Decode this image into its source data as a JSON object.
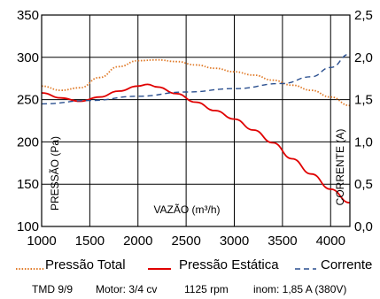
{
  "chart_data": {
    "type": "line",
    "title": "",
    "xlabel": "VAZÃO (m³/h)",
    "ylabel_left": "PRESSÃO (Pa)",
    "ylabel_right": "CORRENTE (A)",
    "xlim": [
      1000,
      4200
    ],
    "ylim_left": [
      100,
      350
    ],
    "ylim_right": [
      0.0,
      2.5
    ],
    "x_ticks": [
      "1000",
      "1500",
      "2000",
      "2500",
      "3000",
      "3500",
      "4000"
    ],
    "y_ticks_left": [
      "100",
      "150",
      "200",
      "250",
      "300",
      "350"
    ],
    "y_ticks_right": [
      "0,0",
      "0,5",
      "1,0",
      "1,5",
      "2,0",
      "2,5"
    ],
    "grid": true,
    "legend_position": "bottom",
    "series": [
      {
        "name": "Pressão Total",
        "axis": "left",
        "color": "#e07a28",
        "style": "dotted",
        "x": [
          1000,
          1200,
          1400,
          1600,
          1800,
          2000,
          2200,
          2400,
          2600,
          2800,
          3000,
          3200,
          3400,
          3600,
          3800,
          4000,
          4200
        ],
        "y": [
          266,
          261,
          264,
          276,
          289,
          296,
          297,
          295,
          291,
          287,
          283,
          279,
          273,
          267,
          261,
          253,
          243
        ]
      },
      {
        "name": "Pressão Estática",
        "axis": "left",
        "color": "#e00000",
        "style": "solid",
        "x": [
          1000,
          1200,
          1400,
          1600,
          1800,
          2000,
          2100,
          2200,
          2400,
          2600,
          2800,
          3000,
          3200,
          3400,
          3600,
          3800,
          4000,
          4200
        ],
        "y": [
          258,
          252,
          248,
          253,
          260,
          266,
          268,
          265,
          257,
          247,
          237,
          227,
          214,
          199,
          180,
          162,
          144,
          128
        ]
      },
      {
        "name": "Corrente",
        "axis": "right",
        "color": "#2a4f8f",
        "style": "dashed",
        "x": [
          1000,
          1500,
          2000,
          2500,
          3000,
          3500,
          3800,
          4000,
          4200
        ],
        "y": [
          1.45,
          1.49,
          1.54,
          1.59,
          1.63,
          1.69,
          1.77,
          1.88,
          2.04
        ]
      }
    ]
  },
  "footer": {
    "model": "TMD 9/9",
    "motor": "Motor: 3/4 cv",
    "rpm": "1125 rpm",
    "current": "inom: 1,85 A (380V)"
  }
}
